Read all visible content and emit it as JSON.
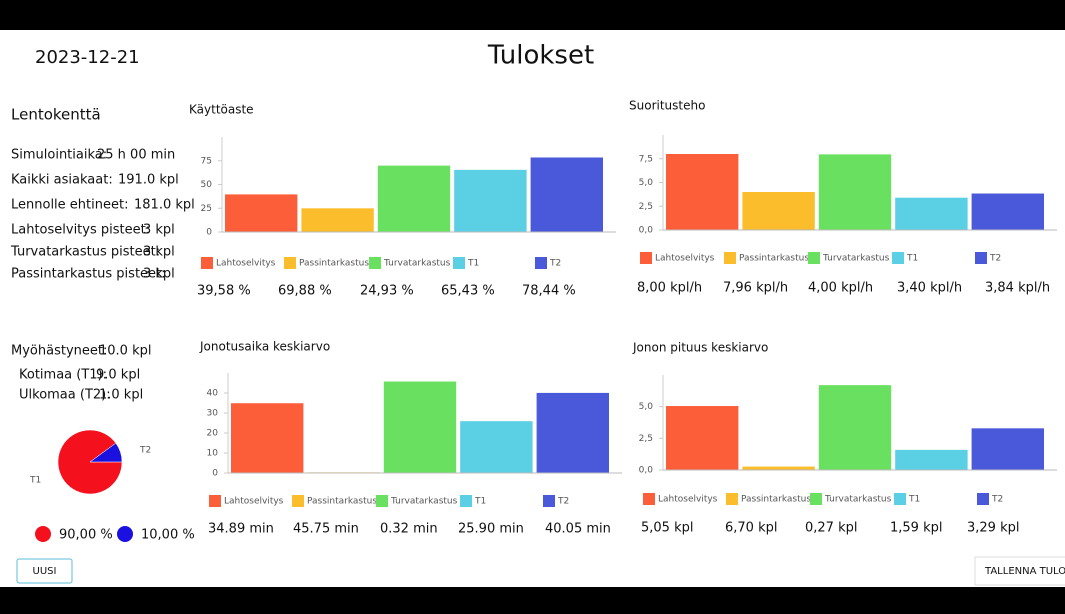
{
  "header": {
    "date": "2023-12-21",
    "title": "Tulokset"
  },
  "airport": {
    "title": "Lentokenttä",
    "rows": [
      {
        "label": "Simulointiaika:",
        "value": "25 h 00 min"
      },
      {
        "label": "Kaikki asiakaat:",
        "value": "191.0 kpl"
      },
      {
        "label": "Lennolle ehtineet:",
        "value": "181.0 kpl"
      },
      {
        "label": "Lahtoselvitys pisteet:",
        "value": "3 kpl"
      },
      {
        "label": "Turvatarkastus pisteet:",
        "value": "3 kpl"
      },
      {
        "label": "Passintarkastus pisteet:",
        "value": "3 kpl"
      }
    ]
  },
  "late": {
    "rows": [
      {
        "label": "Myöhästyneet:",
        "value": "10.0 kpl"
      },
      {
        "label": "Kotimaa (T1):",
        "value": "9.0 kpl"
      },
      {
        "label": "Ulkomaa (T2):",
        "value": "1.0 kpl"
      }
    ]
  },
  "pie": {
    "type": "pie",
    "labels": [
      "T1",
      "T2"
    ],
    "values": [
      90,
      10
    ],
    "value_labels": [
      "90,00 %",
      "10,00 %"
    ],
    "colors": [
      "#f5101e",
      "#1a10e0"
    ]
  },
  "charts": [
    {
      "type": "bar",
      "title": "Käyttöaste",
      "categories": [
        "Lahtoselvitys",
        "Passintarkastus",
        "Turvatarkastus",
        "T1",
        "T2"
      ],
      "values": [
        39.58,
        24.93,
        69.88,
        65.43,
        78.44
      ],
      "colors": [
        "#fc5e3a",
        "#fbbd2c",
        "#6ae060",
        "#5bcfe3",
        "#4a59d9"
      ],
      "ylim": [
        0,
        100
      ],
      "yticks": [
        0,
        25,
        50,
        75
      ],
      "legend_values": [
        "39,58 %",
        "69,88 %",
        "24,93 %",
        "65,43 %",
        "78,44 %"
      ]
    },
    {
      "type": "bar",
      "title": "Suoritusteho",
      "categories": [
        "Lahtoselvitys",
        "Passintarkastus",
        "Turvatarkastus",
        "T1",
        "T2"
      ],
      "values": [
        8.0,
        4.0,
        7.96,
        3.4,
        3.84
      ],
      "colors": [
        "#fc5e3a",
        "#fbbd2c",
        "#6ae060",
        "#5bcfe3",
        "#4a59d9"
      ],
      "ylim": [
        0,
        10
      ],
      "yticks": [
        {
          "value": 0,
          "label": "0,0"
        },
        {
          "value": 2.5,
          "label": "2,5"
        },
        {
          "value": 5,
          "label": "5,0"
        },
        {
          "value": 7.5,
          "label": "7,5"
        }
      ],
      "legend_values": [
        "8,00 kpl/h",
        "7,96 kpl/h",
        "4,00 kpl/h",
        "3,40 kpl/h",
        "3,84 kpl/h"
      ]
    },
    {
      "type": "bar",
      "title": "Jonotusaika keskiarvo",
      "categories": [
        "Lahtoselvitys",
        "Passintarkastus",
        "Turvatarkastus",
        "T1",
        "T2"
      ],
      "values": [
        34.89,
        0.32,
        45.75,
        25.9,
        40.05
      ],
      "colors": [
        "#fc5e3a",
        "#fbbd2c",
        "#6ae060",
        "#5bcfe3",
        "#4a59d9"
      ],
      "ylim": [
        0,
        50
      ],
      "yticks": [
        0,
        10,
        20,
        30,
        40
      ],
      "legend_values": [
        "34.89 min",
        "45.75 min",
        "0.32 min",
        "25.90 min",
        "40.05 min"
      ]
    },
    {
      "type": "bar",
      "title": "Jonon pituus keskiarvo",
      "categories": [
        "Lahtoselvitys",
        "Passintarkastus",
        "Turvatarkastus",
        "T1",
        "T2"
      ],
      "values": [
        5.05,
        0.27,
        6.7,
        1.59,
        3.29
      ],
      "colors": [
        "#fc5e3a",
        "#fbbd2c",
        "#6ae060",
        "#5bcfe3",
        "#4a59d9"
      ],
      "ylim": [
        0,
        7.5
      ],
      "yticks": [
        {
          "value": 0,
          "label": "0,0"
        },
        {
          "value": 2.5,
          "label": "2,5"
        },
        {
          "value": 5,
          "label": "5,0"
        }
      ],
      "legend_values": [
        "5,05 kpl",
        "6,70 kpl",
        "0,27 kpl",
        "1,59 kpl",
        "3,29 kpl"
      ]
    }
  ],
  "buttons": [
    "UUSI",
    "TALLENNA TULOKS"
  ]
}
